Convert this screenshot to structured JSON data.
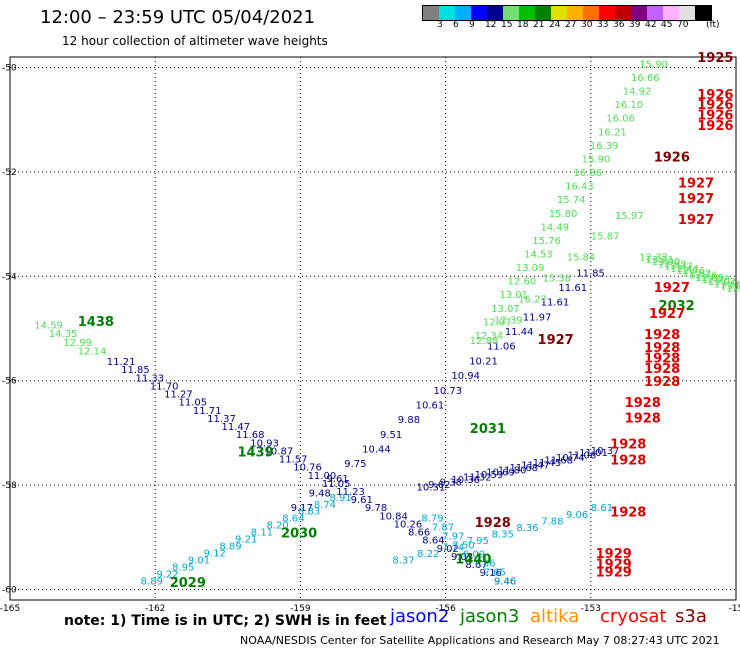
{
  "header": {
    "title": "12:00 – 23:59 UTC 05/04/2021",
    "subtitle": "12 hour collection of altimeter wave heights"
  },
  "color_scale": {
    "unit": "(ft)",
    "swatches": [
      {
        "color": "#808080",
        "label": ""
      },
      {
        "color": "#00e0e0",
        "label": "3"
      },
      {
        "color": "#00b0ff",
        "label": "6"
      },
      {
        "color": "#0000ff",
        "label": "9"
      },
      {
        "color": "#000090",
        "label": "12"
      },
      {
        "color": "#70e070",
        "label": "15"
      },
      {
        "color": "#00c000",
        "label": "18"
      },
      {
        "color": "#008000",
        "label": "21"
      },
      {
        "color": "#e0e000",
        "label": "24"
      },
      {
        "color": "#ffb000",
        "label": "27"
      },
      {
        "color": "#ff7000",
        "label": "30"
      },
      {
        "color": "#ff0000",
        "label": "33"
      },
      {
        "color": "#c00000",
        "label": "36"
      },
      {
        "color": "#800080",
        "label": "39"
      },
      {
        "color": "#c060ff",
        "label": "42"
      },
      {
        "color": "#ffb0ff",
        "label": "45"
      },
      {
        "color": "#e0e0e0",
        "label": "70"
      },
      {
        "color": "#000000",
        "label": ""
      }
    ]
  },
  "map": {
    "lon_range": [
      -165,
      -150
    ],
    "lat_range": [
      -60.2,
      -49.8
    ],
    "lon_ticks": [
      "-165",
      "-162",
      "-159",
      "-156",
      "-153",
      "-15"
    ],
    "lat_ticks": [
      "-50",
      "-52",
      "-54",
      "-56",
      "-58",
      "-60"
    ],
    "colors": {
      "green_light": "#50e050",
      "green_dark": "#008000",
      "blue_dark": "#000090",
      "cyan": "#00a8d8",
      "red": "#e00000",
      "maroon": "#800000"
    },
    "tracks": [
      {
        "color": "green_light",
        "labels": [
          "14.59",
          "14.35",
          "12.99",
          "12.14"
        ],
        "start": [
          -164.5,
          -55.0
        ],
        "end": [
          -163.6,
          -55.5
        ]
      },
      {
        "color": "blue_dark",
        "labels": [
          "11.21",
          "11.85",
          "11.33",
          "11.70",
          "11.27",
          "11.05",
          "11.71",
          "11.37",
          "11.47",
          "11.68",
          "10.93",
          "10.87",
          "11.57",
          "10.76",
          "11.00",
          "11.05",
          "11.23",
          "9.61",
          "9.78",
          "10.84",
          "10.26",
          "8.66",
          "8.64",
          "9.02",
          "9.03",
          "8.67",
          "9.16",
          "9.46"
        ],
        "start": [
          -163.0,
          -55.7
        ],
        "end": [
          -155.0,
          -59.9
        ]
      },
      {
        "color": "blue_dark",
        "labels": [
          "9.17",
          "9.48",
          "9.61",
          "9.75",
          "10.44",
          "9.51",
          "9.88",
          "10.61",
          "10.73",
          "10.94",
          "10.21",
          "11.06",
          "11.44",
          "11.97",
          "11.61",
          "11.61",
          "11.85"
        ],
        "start": [
          -159.2,
          -58.5
        ],
        "end": [
          -153.3,
          -54.0
        ]
      },
      {
        "color": "green_light",
        "labels": [
          "12.34",
          "12.07",
          "13.07",
          "13.01",
          "12.60",
          "13.09",
          "14.53",
          "15.76",
          "14.49",
          "15.80",
          "15.74",
          "16.43",
          "16.86",
          "15.90",
          "16.39",
          "16.21",
          "16.06",
          "16.10",
          "14.92",
          "16.66",
          "15.90"
        ],
        "start": [
          -155.4,
          -55.2
        ],
        "end": [
          -152.0,
          -50.0
        ]
      },
      {
        "color": "blue_dark",
        "labels": [
          "10.31",
          "9.62",
          "9.38",
          "10.36",
          "11.32",
          "10.59",
          "10.69",
          "11.80",
          "11.68",
          "11.47",
          "11.45",
          "11.68",
          "10.74",
          "11.06",
          "11.01",
          "10.37"
        ],
        "start": [
          -156.6,
          -58.1
        ],
        "end": [
          -153.0,
          -57.4
        ]
      },
      {
        "color": "cyan",
        "labels": [
          "8.79",
          "7.87",
          "7.97",
          "7.50",
          "8.09",
          "7.86",
          "7.65",
          "9.46"
        ],
        "start": [
          -156.5,
          -58.7
        ],
        "end": [
          -155.0,
          -59.9
        ]
      },
      {
        "color": "cyan",
        "labels": [
          "8.91",
          "8.74",
          "8.83",
          "8.64",
          "8.20",
          "8.11",
          "9.21",
          "8.89",
          "9.12",
          "9.01",
          "8.95",
          "9.22",
          "8.89"
        ],
        "start": [
          -158.4,
          -58.3
        ],
        "end": [
          -162.3,
          -59.9
        ]
      },
      {
        "color": "cyan",
        "labels": [
          "8.61",
          "9.06",
          "7.88",
          "8.36",
          "8.35",
          "7.95",
          "7.74",
          "8.22",
          "8.37"
        ],
        "start": [
          -153.0,
          -58.5
        ],
        "end": [
          -157.1,
          -59.5
        ]
      },
      {
        "color": "green_light",
        "labels": [
          "12.32",
          "13.21",
          "13.00",
          "12.32",
          "12.37",
          "12.44",
          "12.76",
          "12.82",
          "12.76",
          "12.69",
          "12.78",
          "13.02",
          "13.56",
          "13.87",
          "12.9"
        ],
        "start": [
          -152.0,
          -53.7
        ],
        "end": [
          -150.2,
          -54.3
        ]
      },
      {
        "color": "green_light",
        "labels": [
          "12.88",
          "12.39",
          "16.27",
          "15.38",
          "15.84",
          "15.87",
          "15.97"
        ],
        "start": [
          -155.5,
          -55.3
        ],
        "end": [
          -152.5,
          -52.9
        ]
      }
    ],
    "markers": [
      {
        "text": "1438",
        "color": "green_dark",
        "lon": -163.6,
        "lat": -54.95
      },
      {
        "text": "1439",
        "color": "green_dark",
        "lon": -160.3,
        "lat": -57.45
      },
      {
        "text": "2030",
        "color": "green_dark",
        "lon": -159.4,
        "lat": -59.0
      },
      {
        "text": "2029",
        "color": "green_dark",
        "lon": -161.7,
        "lat": -59.95
      },
      {
        "text": "1440",
        "color": "green_dark",
        "lon": -155.8,
        "lat": -59.5
      },
      {
        "text": "2031",
        "color": "green_dark",
        "lon": -155.5,
        "lat": -57.0
      },
      {
        "text": "2032",
        "color": "green_dark",
        "lon": -151.6,
        "lat": -54.65
      },
      {
        "text": "1928",
        "color": "maroon",
        "lon": -155.4,
        "lat": -58.8
      },
      {
        "text": "1927",
        "color": "maroon",
        "lon": -154.1,
        "lat": -55.3
      },
      {
        "text": "1926",
        "color": "maroon",
        "lon": -151.7,
        "lat": -51.8
      },
      {
        "text": "1925",
        "color": "maroon",
        "lon": -150.8,
        "lat": -49.9
      },
      {
        "text": "1926",
        "color": "red",
        "lon": -150.8,
        "lat": -50.6
      },
      {
        "text": "1926",
        "color": "red",
        "lon": -150.8,
        "lat": -50.8
      },
      {
        "text": "1926",
        "color": "red",
        "lon": -150.8,
        "lat": -51.0
      },
      {
        "text": "1926",
        "color": "red",
        "lon": -150.8,
        "lat": -51.2
      },
      {
        "text": "1927",
        "color": "red",
        "lon": -151.2,
        "lat": -52.3
      },
      {
        "text": "1927",
        "color": "red",
        "lon": -151.2,
        "lat": -52.6
      },
      {
        "text": "1927",
        "color": "red",
        "lon": -151.2,
        "lat": -53.0
      },
      {
        "text": "1927",
        "color": "red",
        "lon": -151.7,
        "lat": -54.3
      },
      {
        "text": "1927",
        "color": "red",
        "lon": -151.8,
        "lat": -54.8
      },
      {
        "text": "1928",
        "color": "red",
        "lon": -151.9,
        "lat": -55.2
      },
      {
        "text": "1928",
        "color": "red",
        "lon": -151.9,
        "lat": -55.45
      },
      {
        "text": "1928",
        "color": "red",
        "lon": -151.9,
        "lat": -55.65
      },
      {
        "text": "1928",
        "color": "red",
        "lon": -151.9,
        "lat": -55.85
      },
      {
        "text": "1928",
        "color": "red",
        "lon": -151.9,
        "lat": -56.1
      },
      {
        "text": "1928",
        "color": "red",
        "lon": -152.3,
        "lat": -56.5
      },
      {
        "text": "1928",
        "color": "red",
        "lon": -152.3,
        "lat": -56.8
      },
      {
        "text": "1928",
        "color": "red",
        "lon": -152.6,
        "lat": -57.3
      },
      {
        "text": "1928",
        "color": "red",
        "lon": -152.6,
        "lat": -57.6
      },
      {
        "text": "1928",
        "color": "red",
        "lon": -152.6,
        "lat": -58.6
      },
      {
        "text": "1929",
        "color": "red",
        "lon": -152.9,
        "lat": -59.4
      },
      {
        "text": "1929",
        "color": "red",
        "lon": -152.9,
        "lat": -59.6
      },
      {
        "text": "1929",
        "color": "red",
        "lon": -152.9,
        "lat": -59.75
      }
    ]
  },
  "footer": {
    "note": "note: 1) Time is in UTC; 2) SWH is in feet",
    "satellites": [
      {
        "name": "jason2",
        "color": "#0000ff"
      },
      {
        "name": "jason3",
        "color": "#008000"
      },
      {
        "name": "altika",
        "color": "#ff9000"
      },
      {
        "name": "cryosat",
        "color": "#ff0000"
      },
      {
        "name": "s3a",
        "color": "#800000"
      }
    ],
    "credit": "NOAA/NESDIS Center for Satellite Applications and Research    May  7 08:27:43 UTC 2021"
  }
}
